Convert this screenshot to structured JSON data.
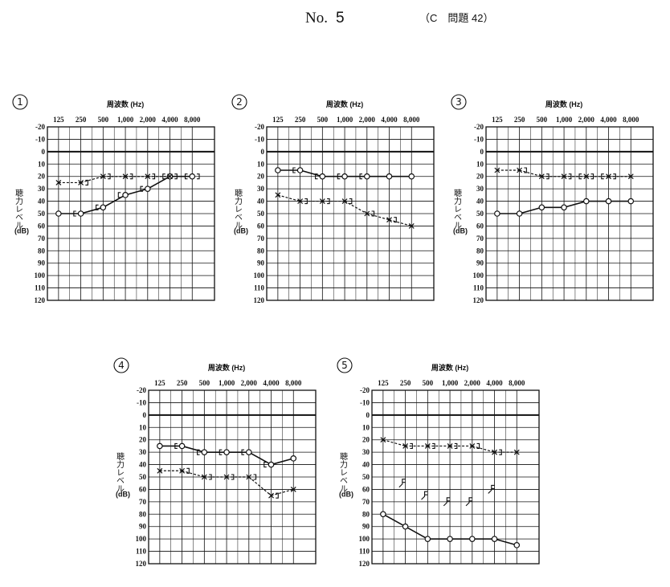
{
  "header": {
    "no_label": "No.",
    "no_value": "5",
    "question": "（C　問題 42）"
  },
  "chart_data": [
    {
      "type": "line",
      "panel_number": "1",
      "title": "周波数 (Hz)",
      "ylabel": "聴力レベル",
      "yunit": "(dB)",
      "categories": [
        "125",
        "250",
        "500",
        "1,000",
        "2,000",
        "4,000",
        "8,000"
      ],
      "ylim": [
        -20,
        120
      ],
      "yticks": [
        -20,
        -10,
        0,
        10,
        20,
        30,
        40,
        50,
        60,
        70,
        80,
        90,
        100,
        110,
        120
      ],
      "grid": true,
      "series": [
        {
          "marker": "o",
          "line": "solid",
          "color": "#111111",
          "values": [
            50,
            50,
            45,
            35,
            30,
            20,
            20
          ]
        },
        {
          "marker": "x",
          "line": "dashed",
          "color": "#111111",
          "values": [
            25,
            25,
            20,
            20,
            20,
            20,
            null
          ]
        },
        {
          "marker": "[",
          "line": "none",
          "color": "#111111",
          "values": [
            null,
            50,
            45,
            35,
            30,
            20,
            20
          ]
        },
        {
          "marker": "]",
          "line": "none",
          "color": "#111111",
          "values": [
            null,
            25,
            20,
            20,
            20,
            20,
            20
          ]
        }
      ]
    },
    {
      "type": "line",
      "panel_number": "2",
      "title": "周波数 (Hz)",
      "ylabel": "聴力レベル",
      "yunit": "(dB)",
      "categories": [
        "125",
        "250",
        "500",
        "1,000",
        "2,000",
        "4,000",
        "8,000"
      ],
      "ylim": [
        -20,
        120
      ],
      "yticks": [
        -20,
        -10,
        0,
        10,
        20,
        30,
        40,
        50,
        60,
        70,
        80,
        90,
        100,
        110,
        120
      ],
      "grid": true,
      "series": [
        {
          "marker": "o",
          "line": "solid",
          "color": "#111111",
          "values": [
            15,
            15,
            20,
            20,
            20,
            20,
            20
          ]
        },
        {
          "marker": "x",
          "line": "dashed",
          "color": "#111111",
          "values": [
            35,
            40,
            40,
            40,
            50,
            55,
            60
          ]
        },
        {
          "marker": "[",
          "line": "none",
          "color": "#111111",
          "values": [
            null,
            15,
            20,
            20,
            20,
            null,
            null
          ]
        },
        {
          "marker": "]",
          "line": "none",
          "color": "#111111",
          "values": [
            null,
            40,
            40,
            40,
            50,
            55,
            null
          ]
        }
      ]
    },
    {
      "type": "line",
      "panel_number": "3",
      "title": "周波数 (Hz)",
      "ylabel": "聴力レベル",
      "yunit": "(dB)",
      "categories": [
        "125",
        "250",
        "500",
        "1,000",
        "2,000",
        "4,000",
        "8,000"
      ],
      "ylim": [
        -20,
        120
      ],
      "yticks": [
        -20,
        -10,
        0,
        10,
        20,
        30,
        40,
        50,
        60,
        70,
        80,
        90,
        100,
        110,
        120
      ],
      "grid": true,
      "series": [
        {
          "marker": "o",
          "line": "solid",
          "color": "#111111",
          "values": [
            50,
            50,
            45,
            45,
            40,
            40,
            40
          ]
        },
        {
          "marker": "x",
          "line": "dashed",
          "color": "#111111",
          "values": [
            15,
            15,
            20,
            20,
            20,
            20,
            20
          ]
        },
        {
          "marker": "]",
          "line": "none",
          "color": "#111111",
          "values": [
            null,
            15,
            20,
            20,
            20,
            20,
            null
          ]
        },
        {
          "marker": "[",
          "line": "none",
          "color": "#111111",
          "values": [
            null,
            null,
            null,
            null,
            20,
            20,
            null
          ]
        }
      ]
    },
    {
      "type": "line",
      "panel_number": "4",
      "title": "周波数 (Hz)",
      "ylabel": "聴力レベル",
      "yunit": "(dB)",
      "categories": [
        "125",
        "250",
        "500",
        "1,000",
        "2,000",
        "4,000",
        "8,000"
      ],
      "ylim": [
        -20,
        120
      ],
      "yticks": [
        -20,
        -10,
        0,
        10,
        20,
        30,
        40,
        50,
        60,
        70,
        80,
        90,
        100,
        110,
        120
      ],
      "grid": true,
      "series": [
        {
          "marker": "o",
          "line": "solid",
          "color": "#111111",
          "values": [
            25,
            25,
            30,
            30,
            30,
            40,
            35
          ]
        },
        {
          "marker": "x",
          "line": "dashed",
          "color": "#111111",
          "values": [
            45,
            45,
            50,
            50,
            50,
            65,
            60
          ]
        },
        {
          "marker": "[",
          "line": "none",
          "color": "#111111",
          "values": [
            null,
            25,
            30,
            30,
            30,
            40,
            null
          ]
        },
        {
          "marker": "]",
          "line": "none",
          "color": "#111111",
          "values": [
            null,
            45,
            50,
            50,
            50,
            65,
            null
          ]
        }
      ]
    },
    {
      "type": "line",
      "panel_number": "5",
      "title": "周波数 (Hz)",
      "ylabel": "聴力レベル",
      "yunit": "(dB)",
      "categories": [
        "125",
        "250",
        "500",
        "1,000",
        "2,000",
        "4,000",
        "8,000"
      ],
      "ylim": [
        -20,
        120
      ],
      "yticks": [
        -20,
        -10,
        0,
        10,
        20,
        30,
        40,
        50,
        60,
        70,
        80,
        90,
        100,
        110,
        120
      ],
      "grid": true,
      "series": [
        {
          "marker": "o",
          "line": "solid",
          "color": "#111111",
          "values": [
            80,
            90,
            100,
            100,
            100,
            100,
            105
          ]
        },
        {
          "marker": "x",
          "line": "dashed",
          "color": "#111111",
          "values": [
            20,
            25,
            25,
            25,
            25,
            30,
            30
          ]
        },
        {
          "marker": "]",
          "line": "none",
          "color": "#111111",
          "values": [
            null,
            25,
            25,
            25,
            25,
            30,
            null
          ]
        },
        {
          "marker": "scale-out",
          "line": "none",
          "color": "#111111",
          "values": [
            null,
            55,
            65,
            70,
            70,
            60,
            null
          ]
        }
      ]
    }
  ]
}
